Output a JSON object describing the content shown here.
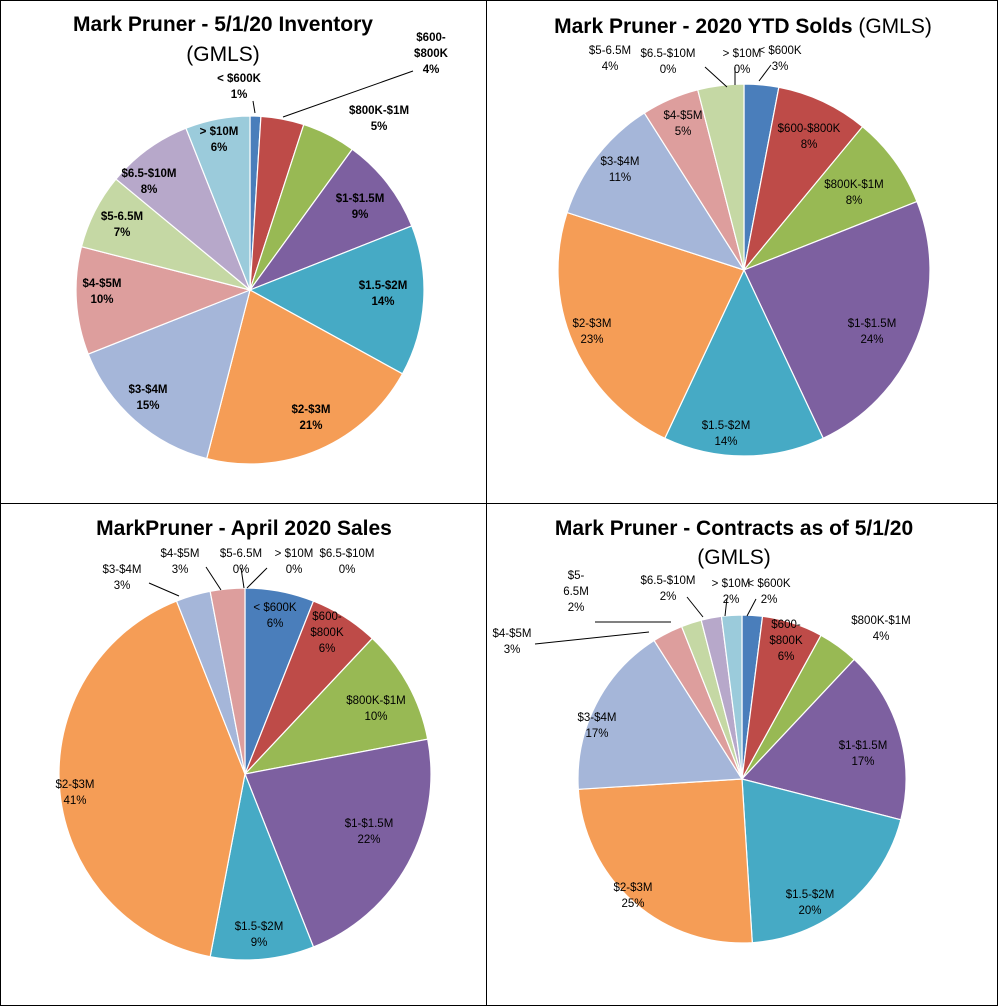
{
  "chart_data": [
    {
      "type": "pie",
      "title": "Mark Pruner - 5/1/20 Inventory",
      "subtitle": "(GMLS)",
      "categories": [
        "< $600K",
        "$600-$800K",
        "$800K-$1M",
        "$1-$1.5M",
        "$1.5-$2M",
        "$2-$3M",
        "$3-$4M",
        "$4-$5M",
        "$5-6.5M",
        "$6.5-$10M",
        "> $10M"
      ],
      "values": [
        1,
        4,
        5,
        9,
        14,
        21,
        15,
        10,
        7,
        8,
        6
      ],
      "labels": [
        {
          "name": "< $600K",
          "pct": "1%"
        },
        {
          "name": "$600-\n$800K",
          "pct": "4%"
        },
        {
          "name": "$800K-$1M",
          "pct": "5%"
        },
        {
          "name": "$1-$1.5M",
          "pct": "9%"
        },
        {
          "name": "$1.5-$2M",
          "pct": "14%"
        },
        {
          "name": "$2-$3M",
          "pct": "21%"
        },
        {
          "name": "$3-$4M",
          "pct": "15%"
        },
        {
          "name": "$4-$5M",
          "pct": "10%"
        },
        {
          "name": "$5-6.5M",
          "pct": "7%"
        },
        {
          "name": "$6.5-$10M",
          "pct": "8%"
        },
        {
          "name": "> $10M",
          "pct": "6%"
        }
      ],
      "colors": [
        "#4a7ebb",
        "#be4b48",
        "#98b954",
        "#7d60a0",
        "#46aac5",
        "#f59d56",
        "#a5b6d9",
        "#dd9e9d",
        "#c5d8a4",
        "#b7a8ca",
        "#9bcbdb"
      ]
    },
    {
      "type": "pie",
      "title": "Mark Pruner - 2020 YTD Solds",
      "subtitle": "(GMLS)",
      "categories": [
        "< $600K",
        "$600-$800K",
        "$800K-$1M",
        "$1-$1.5M",
        "$1.5-$2M",
        "$2-$3M",
        "$3-$4M",
        "$4-$5M",
        "$5-6.5M",
        "$6.5-$10M",
        "> $10M"
      ],
      "values": [
        3,
        8,
        8,
        24,
        14,
        23,
        11,
        5,
        4,
        0,
        0
      ],
      "labels": [
        {
          "name": "< $600K",
          "pct": "3%"
        },
        {
          "name": "$600-$800K",
          "pct": "8%"
        },
        {
          "name": "$800K-$1M",
          "pct": "8%"
        },
        {
          "name": "$1-$1.5M",
          "pct": "24%"
        },
        {
          "name": "$1.5-$2M",
          "pct": "14%"
        },
        {
          "name": "$2-$3M",
          "pct": "23%"
        },
        {
          "name": "$3-$4M",
          "pct": "11%"
        },
        {
          "name": "$4-$5M",
          "pct": "5%"
        },
        {
          "name": "$5-6.5M",
          "pct": "4%"
        },
        {
          "name": "$6.5-$10M",
          "pct": "0%"
        },
        {
          "name": "> $10M",
          "pct": "0%"
        }
      ],
      "colors": [
        "#4a7ebb",
        "#be4b48",
        "#98b954",
        "#7d60a0",
        "#46aac5",
        "#f59d56",
        "#a5b6d9",
        "#dd9e9d",
        "#c5d8a4",
        "#b7a8ca",
        "#9bcbdb"
      ]
    },
    {
      "type": "pie",
      "title": "MarkPruner - April 2020 Sales",
      "subtitle": "",
      "categories": [
        "< $600K",
        "$600-$800K",
        "$800K-$1M",
        "$1-$1.5M",
        "$1.5-$2M",
        "$2-$3M",
        "$3-$4M",
        "$4-$5M",
        "$5-6.5M",
        "> $10M",
        "$6.5-$10M"
      ],
      "values": [
        6,
        6,
        10,
        22,
        9,
        41,
        3,
        3,
        0,
        0,
        0
      ],
      "labels": [
        {
          "name": "< $600K",
          "pct": "6%"
        },
        {
          "name": "$600-\n$800K",
          "pct": "6%"
        },
        {
          "name": "$800K-$1M",
          "pct": "10%"
        },
        {
          "name": "$1-$1.5M",
          "pct": "22%"
        },
        {
          "name": "$1.5-$2M",
          "pct": "9%"
        },
        {
          "name": "$2-$3M",
          "pct": "41%"
        },
        {
          "name": "$3-$4M",
          "pct": "3%"
        },
        {
          "name": "$4-$5M",
          "pct": "3%"
        },
        {
          "name": "$5-6.5M",
          "pct": "0%"
        },
        {
          "name": "> $10M",
          "pct": "0%"
        },
        {
          "name": "$6.5-$10M",
          "pct": "0%"
        }
      ],
      "colors": [
        "#4a7ebb",
        "#be4b48",
        "#98b954",
        "#7d60a0",
        "#46aac5",
        "#f59d56",
        "#a5b6d9",
        "#dd9e9d",
        "#c5d8a4",
        "#9bcbdb",
        "#b7a8ca"
      ]
    },
    {
      "type": "pie",
      "title": "Mark Pruner - Contracts as of 5/1/20",
      "subtitle": "(GMLS)",
      "categories": [
        "< $600K",
        "$600-$800K",
        "$800K-$1M",
        "$1-$1.5M",
        "$1.5-$2M",
        "$2-$3M",
        "$3-$4M",
        "$4-$5M",
        "$5-6.5M",
        "$6.5-$10M",
        "> $10M"
      ],
      "values": [
        2,
        6,
        4,
        17,
        20,
        25,
        17,
        3,
        2,
        2,
        2
      ],
      "labels": [
        {
          "name": "< $600K",
          "pct": "2%"
        },
        {
          "name": "$600-\n$800K",
          "pct": "6%"
        },
        {
          "name": "$800K-$1M",
          "pct": "4%"
        },
        {
          "name": "$1-$1.5M",
          "pct": "17%"
        },
        {
          "name": "$1.5-$2M",
          "pct": "20%"
        },
        {
          "name": "$2-$3M",
          "pct": "25%"
        },
        {
          "name": "$3-$4M",
          "pct": "17%"
        },
        {
          "name": "$4-$5M",
          "pct": "3%"
        },
        {
          "name": "$5-\n6.5M",
          "pct": "2%"
        },
        {
          "name": "$6.5-$10M",
          "pct": "2%"
        },
        {
          "name": "> $10M",
          "pct": "2%"
        }
      ],
      "colors": [
        "#4a7ebb",
        "#be4b48",
        "#98b954",
        "#7d60a0",
        "#46aac5",
        "#f59d56",
        "#a5b6d9",
        "#dd9e9d",
        "#c5d8a4",
        "#b7a8ca",
        "#9bcbdb"
      ]
    }
  ]
}
